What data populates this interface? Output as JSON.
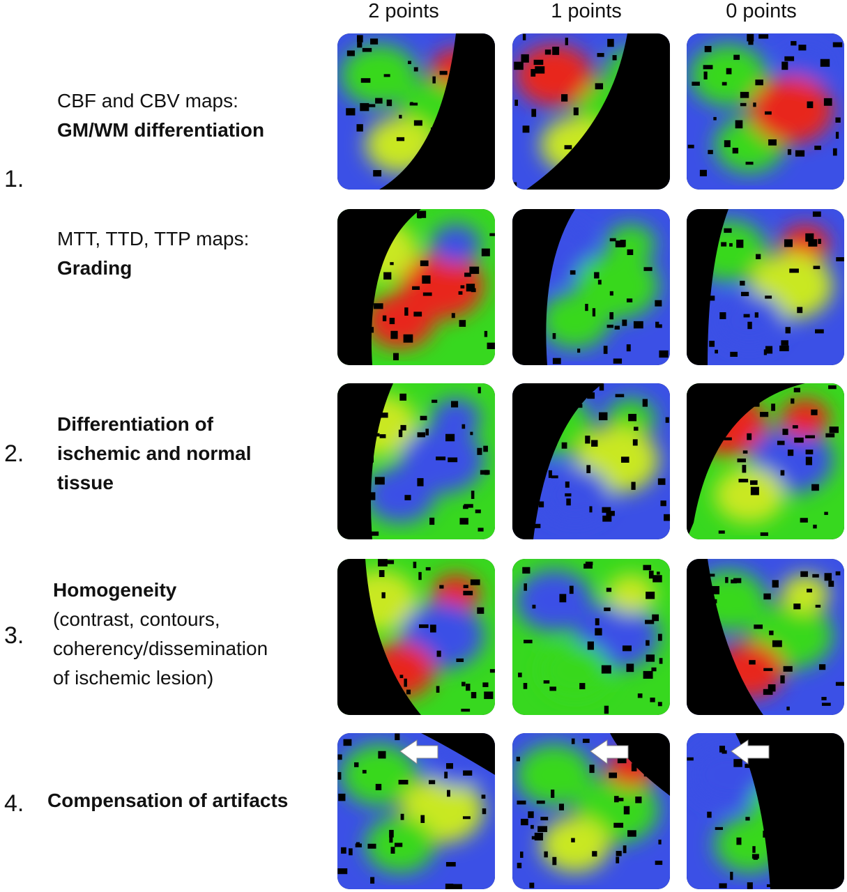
{
  "columns": [
    "2 points",
    "1 points",
    "0 points"
  ],
  "numbers": {
    "n1": "1.",
    "n2": "2.",
    "n3": "3.",
    "n4": "4."
  },
  "rows": {
    "r1": {
      "line1": "CBF and CBV maps:",
      "line2": "GM/WM differentiation"
    },
    "r1b": {
      "line1": "MTT, TTD, TTP maps:",
      "line2": "Grading"
    },
    "r2": {
      "line1": "Differentiation of",
      "line2": "ischemic and normal",
      "line3": "tissue"
    },
    "r3": {
      "line1": "Homogeneity",
      "line2": "(contrast, contours,",
      "line3": "coherency/dissemination",
      "line4": "of ischemic lesion)"
    },
    "r4": {
      "line1": "Compensation of artifacts"
    }
  },
  "colors": {
    "blue": "#3b50e6",
    "green": "#37d81f",
    "yellow": "#c9e820",
    "red": "#e8261a",
    "black": "#000000"
  }
}
